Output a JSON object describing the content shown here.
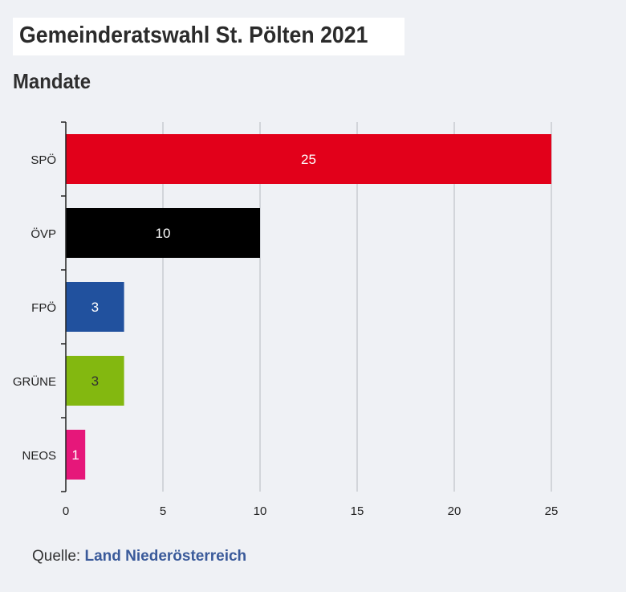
{
  "header": {
    "title": "Gemeinderatswahl St. Pölten 2021",
    "subtitle": "Mandate"
  },
  "chart_data": {
    "type": "bar",
    "orientation": "horizontal",
    "categories": [
      "SPÖ",
      "ÖVP",
      "FPÖ",
      "GRÜNE",
      "NEOS"
    ],
    "values": [
      25,
      10,
      3,
      3,
      1
    ],
    "colors": [
      "#e2001a",
      "#000000",
      "#21519e",
      "#83b810",
      "#e6177a"
    ],
    "label_colors": [
      "#ffffff",
      "#ffffff",
      "#ffffff",
      "#333333",
      "#ffffff"
    ],
    "x_ticks": [
      0,
      5,
      10,
      15,
      20,
      25
    ],
    "xlim": [
      0,
      25
    ],
    "grid": true
  },
  "footer": {
    "source_label": "Quelle:",
    "source_name": "Land Niederösterreich"
  }
}
